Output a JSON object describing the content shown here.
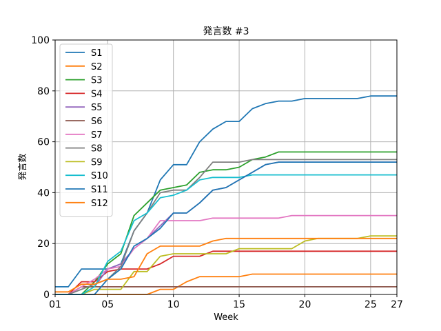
{
  "chart_data": {
    "type": "line",
    "title": "発言数 #3",
    "xlabel": "Week",
    "ylabel": "発言数",
    "xlim": [
      1,
      27
    ],
    "ylim": [
      0,
      100
    ],
    "x_ticks": [
      1,
      5,
      10,
      15,
      20,
      25,
      27
    ],
    "x_tick_labels": [
      "01",
      "05",
      "10",
      "15",
      "20",
      "25",
      "27"
    ],
    "y_ticks": [
      0,
      20,
      40,
      60,
      80,
      100
    ],
    "y_tick_labels": [
      "0",
      "20",
      "40",
      "60",
      "80",
      "100"
    ],
    "grid": true,
    "legend_position": "top-left",
    "x": [
      1,
      2,
      3,
      4,
      5,
      6,
      7,
      8,
      9,
      10,
      11,
      12,
      13,
      14,
      15,
      16,
      17,
      18,
      19,
      20,
      21,
      22,
      23,
      24,
      25,
      26,
      27
    ],
    "series": [
      {
        "name": "S1",
        "color": "#1f77b4",
        "values": [
          3,
          3,
          10,
          10,
          10,
          12,
          25,
          32,
          45,
          51,
          51,
          60,
          65,
          68,
          68,
          73,
          75,
          76,
          76,
          77,
          77,
          77,
          77,
          77,
          78,
          78,
          78
        ]
      },
      {
        "name": "S2",
        "color": "#ff7f0e",
        "values": [
          0,
          0,
          0,
          0,
          0,
          0,
          0,
          0,
          2,
          2,
          5,
          7,
          7,
          7,
          7,
          8,
          8,
          8,
          8,
          8,
          8,
          8,
          8,
          8,
          8,
          8,
          8
        ]
      },
      {
        "name": "S3",
        "color": "#2ca02c",
        "values": [
          0,
          0,
          0,
          5,
          12,
          16,
          31,
          36,
          41,
          42,
          43,
          48,
          49,
          49,
          50,
          53,
          54,
          56,
          56,
          56,
          56,
          56,
          56,
          56,
          56,
          56,
          56
        ]
      },
      {
        "name": "S4",
        "color": "#d62728",
        "values": [
          0,
          0,
          5,
          5,
          9,
          10,
          10,
          10,
          12,
          15,
          15,
          15,
          17,
          17,
          17,
          17,
          17,
          17,
          17,
          17,
          17,
          17,
          17,
          17,
          17,
          17,
          17
        ]
      },
      {
        "name": "S5",
        "color": "#9467bd",
        "values": [
          0,
          0,
          3,
          3,
          10,
          12,
          18,
          22,
          27,
          32,
          32,
          36,
          41,
          42,
          45,
          48,
          51,
          52,
          52,
          52,
          52,
          52,
          52,
          52,
          52,
          52,
          52
        ]
      },
      {
        "name": "S6",
        "color": "#8c564b",
        "values": [
          0,
          0,
          3,
          3,
          3,
          3,
          3,
          3,
          3,
          3,
          3,
          3,
          3,
          3,
          3,
          3,
          3,
          3,
          3,
          3,
          3,
          3,
          3,
          3,
          3,
          3,
          3
        ]
      },
      {
        "name": "S7",
        "color": "#e377c2",
        "values": [
          0,
          0,
          3,
          6,
          10,
          11,
          18,
          22,
          29,
          29,
          29,
          29,
          30,
          30,
          30,
          30,
          30,
          30,
          31,
          31,
          31,
          31,
          31,
          31,
          31,
          31,
          31
        ]
      },
      {
        "name": "S8",
        "color": "#7f7f7f",
        "values": [
          0,
          0,
          2,
          4,
          6,
          11,
          25,
          32,
          40,
          41,
          41,
          46,
          52,
          52,
          52,
          53,
          53,
          53,
          53,
          53,
          53,
          53,
          53,
          53,
          53,
          53,
          53
        ]
      },
      {
        "name": "S9",
        "color": "#bcbd22",
        "values": [
          0,
          0,
          0,
          2,
          2,
          2,
          9,
          9,
          15,
          16,
          16,
          16,
          16,
          16,
          18,
          18,
          18,
          18,
          18,
          21,
          22,
          22,
          22,
          22,
          23,
          23,
          23
        ]
      },
      {
        "name": "S10",
        "color": "#17becf",
        "values": [
          0,
          0,
          0,
          3,
          13,
          17,
          29,
          32,
          38,
          39,
          41,
          45,
          46,
          46,
          46,
          47,
          47,
          47,
          47,
          47,
          47,
          47,
          47,
          47,
          47,
          47,
          47
        ]
      },
      {
        "name": "S11",
        "color": "#1f77b4",
        "values": [
          0,
          0,
          0,
          0,
          6,
          10,
          19,
          22,
          26,
          32,
          32,
          36,
          41,
          42,
          45,
          48,
          51,
          52,
          52,
          52,
          52,
          52,
          52,
          52,
          52,
          52,
          52
        ]
      },
      {
        "name": "S12",
        "color": "#ff7f0e",
        "values": [
          1,
          1,
          4,
          4,
          6,
          6,
          7,
          16,
          19,
          19,
          19,
          19,
          21,
          22,
          22,
          22,
          22,
          22,
          22,
          22,
          22,
          22,
          22,
          22,
          22,
          22,
          22
        ]
      }
    ]
  }
}
